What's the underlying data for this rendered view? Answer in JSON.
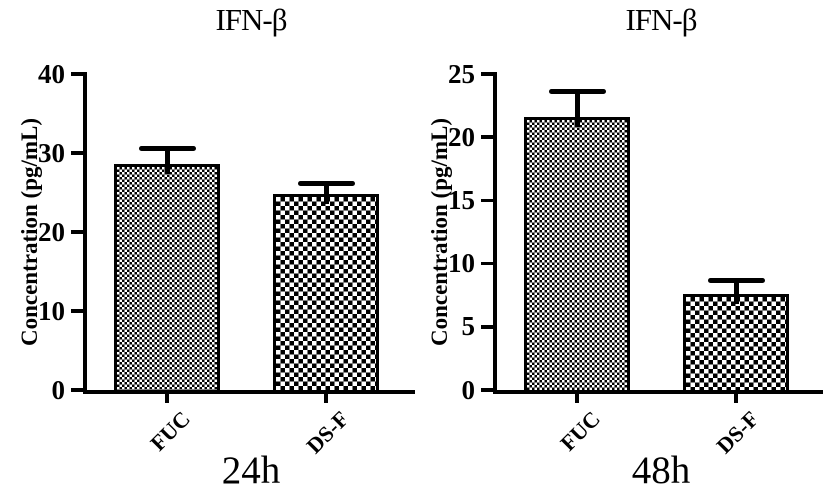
{
  "figure": {
    "background": "#ffffff",
    "ink_color": "#000000",
    "panel_count": 2
  },
  "chart_data": [
    {
      "type": "bar",
      "title": "IFN-β",
      "ylabel": "Concentration (pg/mL)",
      "xlabel": "24h",
      "categories": [
        "FUC",
        "DS-F"
      ],
      "values": [
        28.6,
        24.8
      ],
      "errors": [
        2.0,
        1.4
      ],
      "ylim": [
        0,
        40
      ],
      "yticks": [
        0,
        10,
        20,
        30,
        40
      ],
      "grid": false,
      "legend_position": "none",
      "bar_color": "#000000",
      "bar_patterns": [
        "fine-checkerboard",
        "coarse-checkerboard"
      ],
      "error_bar_style": "upper-cap"
    },
    {
      "type": "bar",
      "title": "IFN-β",
      "ylabel": "Concentration (pg/mL)",
      "xlabel": "48h",
      "categories": [
        "FUC",
        "DS-F"
      ],
      "values": [
        21.6,
        7.6
      ],
      "errors": [
        2.0,
        1.1
      ],
      "ylim": [
        0,
        25
      ],
      "yticks": [
        0,
        5,
        10,
        15,
        20,
        25
      ],
      "grid": false,
      "legend_position": "none",
      "bar_color": "#000000",
      "bar_patterns": [
        "fine-checkerboard",
        "coarse-checkerboard"
      ],
      "error_bar_style": "upper-cap"
    }
  ]
}
